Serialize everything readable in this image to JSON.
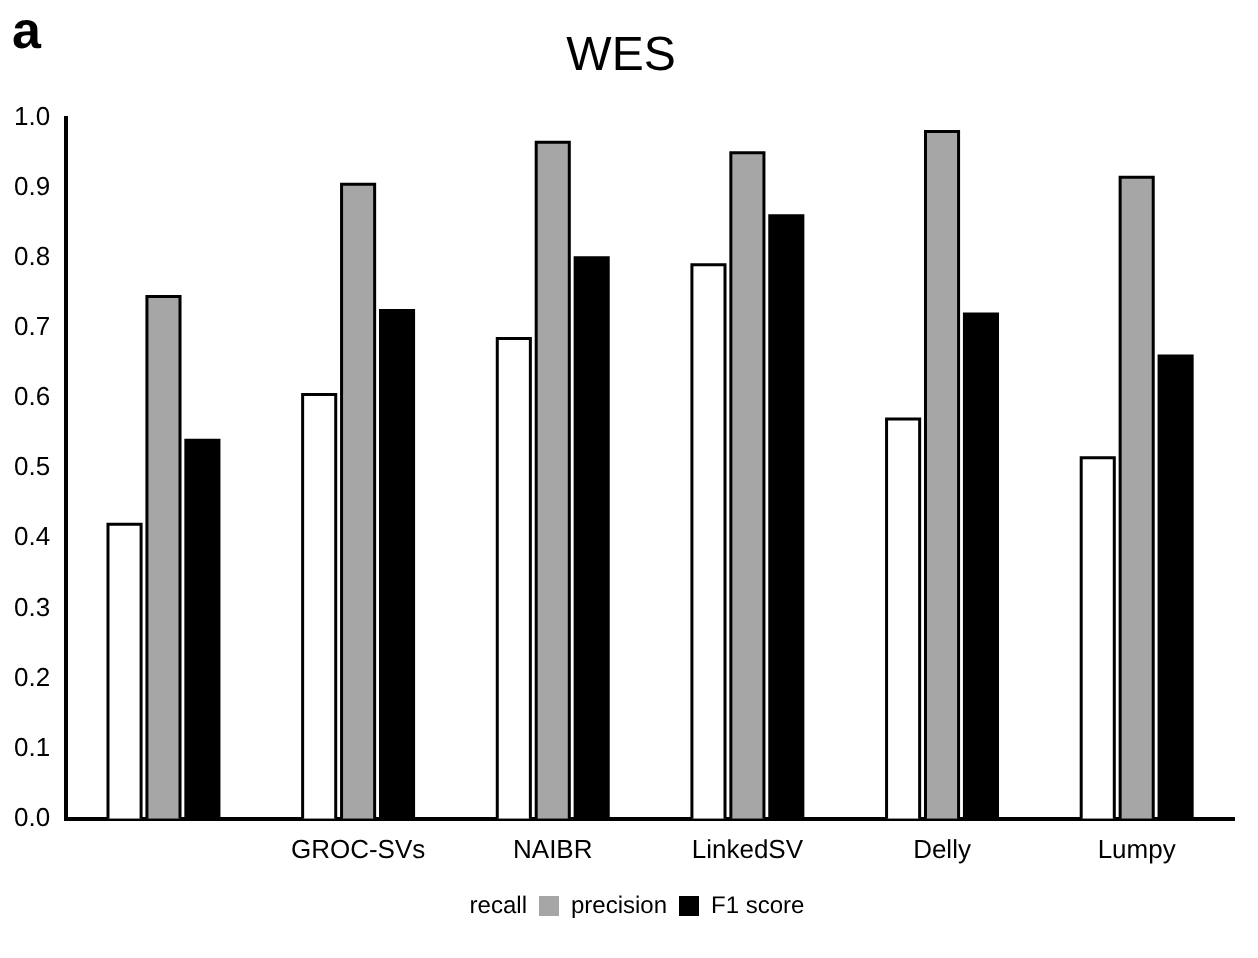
{
  "chart_data": {
    "type": "bar",
    "title": "WES",
    "annotations": [
      "a"
    ],
    "categories": [
      null,
      "GROC-SVs",
      "NAIBR",
      "LinkedSV",
      "Delly",
      "Lumpy"
    ],
    "series": [
      {
        "name": "recall",
        "color": "#ffffff",
        "values": [
          0.42,
          0.605,
          0.685,
          0.79,
          0.57,
          0.515
        ]
      },
      {
        "name": "precision",
        "color": "#a6a6a6",
        "values": [
          0.745,
          0.905,
          0.965,
          0.95,
          0.98,
          0.915
        ]
      },
      {
        "name": "F1 score",
        "color": "#000000",
        "values": [
          0.54,
          0.725,
          0.8,
          0.86,
          0.72,
          0.66
        ]
      }
    ],
    "ylim": [
      0,
      1
    ],
    "yticks": [
      {
        "value": 0,
        "label": "0.0"
      },
      {
        "value": 0.1,
        "label": "0.1"
      },
      {
        "value": 0.2,
        "label": "0.2"
      },
      {
        "value": 0.3,
        "label": "0.3"
      },
      {
        "value": 0.4,
        "label": "0.4"
      },
      {
        "value": 0.5,
        "label": "0.5"
      },
      {
        "value": 0.6,
        "label": "0.6"
      },
      {
        "value": 0.7,
        "label": "0.7"
      },
      {
        "value": 0.8,
        "label": "0.8"
      },
      {
        "value": 0.9,
        "label": "0.9"
      },
      {
        "value": 1,
        "label": "1.0"
      }
    ],
    "grid": false,
    "legend": "bottom"
  }
}
